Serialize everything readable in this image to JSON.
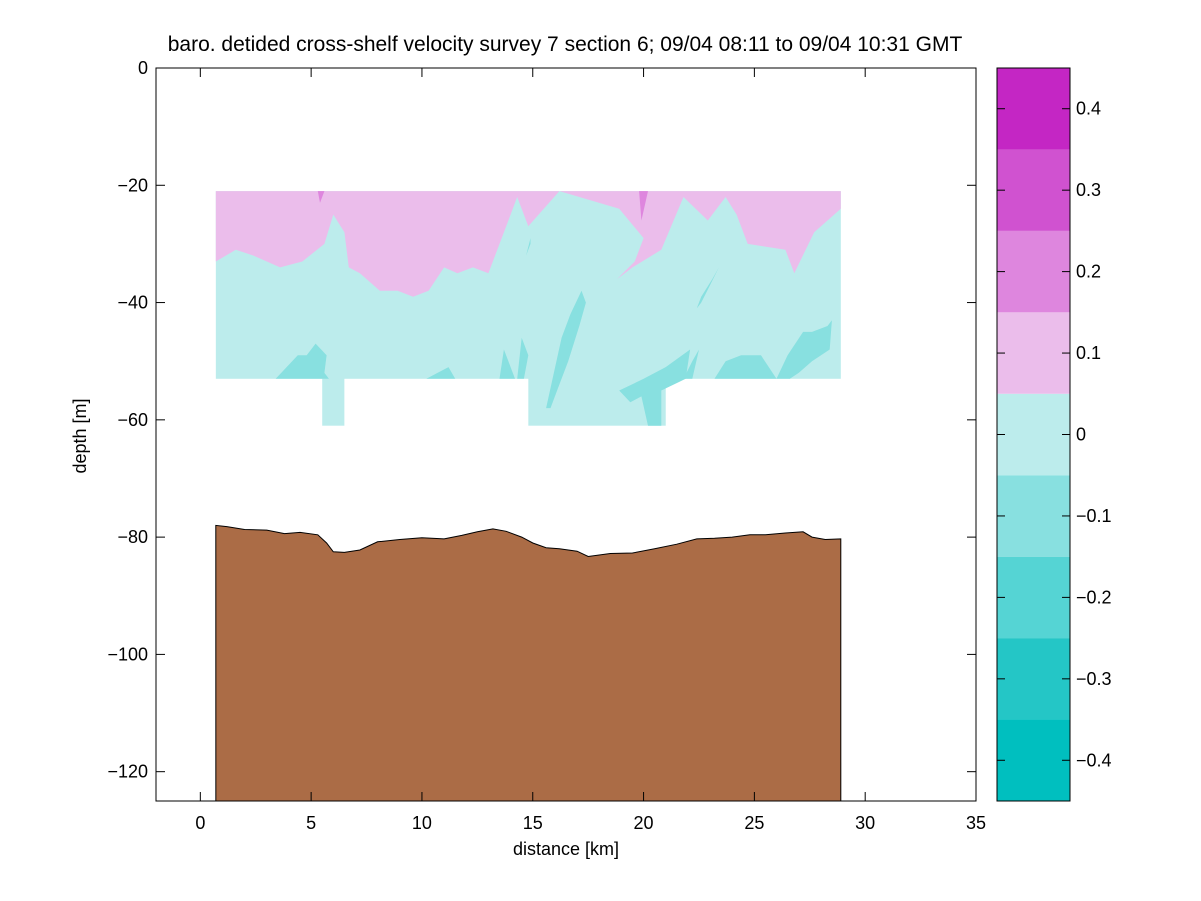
{
  "chart_data": {
    "type": "contour",
    "title": "baro. detided cross-shelf velocity survey 7 section 6; 09/04 08:11 to 09/04 10:31 GMT",
    "xlabel": "distance [km]",
    "ylabel": "depth [m]",
    "xlim": [
      -2,
      35
    ],
    "ylim": [
      -125,
      0
    ],
    "xticks": [
      0,
      5,
      10,
      15,
      20,
      25,
      30,
      35
    ],
    "yticks": [
      0,
      -20,
      -40,
      -60,
      -80,
      -100,
      -120
    ],
    "grid": false,
    "colorbar": {
      "range": [
        -0.45,
        0.45
      ],
      "levels": [
        -0.45,
        -0.35,
        -0.25,
        -0.15,
        -0.05,
        0.05,
        0.15,
        0.25,
        0.35,
        0.45
      ],
      "colors": [
        "#00bfbf",
        "#24c6c6",
        "#55d4d4",
        "#88e0e0",
        "#bcecec",
        "#ebbdeb",
        "#de86de",
        "#d052d0",
        "#c426c4"
      ],
      "ticks": [
        0.4,
        0.3,
        0.2,
        0.1,
        0,
        -0.1,
        -0.2,
        -0.3,
        -0.4
      ],
      "tick_labels": [
        "0.4",
        "0.3",
        "0.2",
        "0.1",
        "0",
        "−0.1",
        "−0.2",
        "−0.3",
        "−0.4"
      ]
    },
    "section": {
      "x_range": [
        0.7,
        28.9
      ],
      "depth_top": -21,
      "depth_bottom": -53,
      "deep_profiles": [
        [
          5.5,
          6.5
        ],
        [
          14.8,
          21.0
        ]
      ],
      "deep_bottom": -61,
      "base_level": 0.05
    },
    "regions": [
      {
        "level": 0.15,
        "points": [
          [
            0.7,
            -21
          ],
          [
            28.9,
            -21
          ],
          [
            28.9,
            -24
          ],
          [
            27.7,
            -28
          ],
          [
            26.8,
            -35
          ],
          [
            26.4,
            -31
          ],
          [
            24.7,
            -30
          ],
          [
            24.2,
            -25
          ],
          [
            23.7,
            -22
          ],
          [
            22.9,
            -26
          ],
          [
            21.8,
            -22
          ],
          [
            20.8,
            -31
          ],
          [
            19.5,
            -34
          ],
          [
            18.8,
            -36
          ],
          [
            19.6,
            -33
          ],
          [
            20.0,
            -29
          ],
          [
            18.9,
            -24
          ],
          [
            16.2,
            -21
          ],
          [
            14.8,
            -27
          ],
          [
            14.3,
            -22
          ],
          [
            13.8,
            -27
          ],
          [
            13.0,
            -35
          ],
          [
            12.3,
            -34
          ],
          [
            11.6,
            -35
          ],
          [
            11.0,
            -34
          ],
          [
            10.3,
            -38
          ],
          [
            9.6,
            -39
          ],
          [
            8.9,
            -38
          ],
          [
            8.1,
            -38
          ],
          [
            7.2,
            -35
          ],
          [
            6.7,
            -34
          ],
          [
            6.5,
            -28
          ],
          [
            6.0,
            -25
          ],
          [
            5.6,
            -30
          ],
          [
            4.6,
            -33
          ],
          [
            3.6,
            -34
          ],
          [
            2.4,
            -32
          ],
          [
            1.6,
            -31
          ],
          [
            0.7,
            -33
          ]
        ]
      },
      {
        "level": 0.25,
        "points": [
          [
            5.3,
            -21
          ],
          [
            5.6,
            -21
          ],
          [
            5.4,
            -23
          ]
        ]
      },
      {
        "level": 0.25,
        "points": [
          [
            19.8,
            -21
          ],
          [
            20.2,
            -21
          ],
          [
            19.9,
            -26
          ]
        ]
      },
      {
        "level": -0.05,
        "points": [
          [
            3.4,
            -53
          ],
          [
            4.4,
            -49
          ],
          [
            4.8,
            -49
          ],
          [
            5.2,
            -47
          ],
          [
            5.7,
            -49
          ],
          [
            5.6,
            -52
          ],
          [
            5.8,
            -53
          ]
        ]
      },
      {
        "level": -0.05,
        "points": [
          [
            10.2,
            -53
          ],
          [
            10.7,
            -52
          ],
          [
            11.2,
            -51
          ],
          [
            11.5,
            -53
          ]
        ]
      },
      {
        "level": -0.05,
        "points": [
          [
            13.5,
            -53
          ],
          [
            13.7,
            -48
          ],
          [
            13.9,
            -50
          ],
          [
            14.2,
            -53
          ]
        ]
      },
      {
        "level": -0.05,
        "points": [
          [
            14.3,
            -53
          ],
          [
            14.5,
            -46
          ],
          [
            14.8,
            -49
          ],
          [
            14.6,
            -53
          ]
        ]
      },
      {
        "level": -0.05,
        "points": [
          [
            15.6,
            -58
          ],
          [
            16.3,
            -46
          ],
          [
            16.7,
            -42
          ],
          [
            17.2,
            -38
          ],
          [
            17.4,
            -40
          ],
          [
            17.1,
            -44
          ],
          [
            16.6,
            -50
          ],
          [
            16.1,
            -55
          ],
          [
            15.8,
            -58
          ]
        ]
      },
      {
        "level": -0.05,
        "points": [
          [
            14.9,
            -30
          ],
          [
            14.9,
            -29
          ],
          [
            14.7,
            -32
          ]
        ]
      },
      {
        "level": -0.05,
        "points": [
          [
            20.2,
            -61
          ],
          [
            19.9,
            -56
          ],
          [
            19.4,
            -57
          ],
          [
            18.9,
            -55
          ],
          [
            20.0,
            -53
          ],
          [
            21.0,
            -51
          ],
          [
            22.1,
            -48
          ],
          [
            21.9,
            -53
          ],
          [
            20.8,
            -55
          ],
          [
            20.8,
            -61
          ]
        ]
      },
      {
        "level": -0.05,
        "points": [
          [
            21.8,
            -53
          ],
          [
            22.2,
            -50
          ],
          [
            22.5,
            -48
          ],
          [
            22.2,
            -53
          ]
        ]
      },
      {
        "level": -0.05,
        "points": [
          [
            22.4,
            -41
          ],
          [
            22.6,
            -39
          ],
          [
            23.1,
            -36
          ],
          [
            23.4,
            -34
          ],
          [
            23.0,
            -37
          ],
          [
            22.6,
            -40
          ]
        ]
      },
      {
        "level": -0.05,
        "points": [
          [
            23.2,
            -53
          ],
          [
            23.7,
            -50
          ],
          [
            24.4,
            -49
          ],
          [
            25.3,
            -49
          ],
          [
            26.0,
            -53
          ]
        ]
      },
      {
        "level": -0.05,
        "points": [
          [
            26.0,
            -53
          ],
          [
            26.5,
            -49
          ],
          [
            27.2,
            -45
          ],
          [
            27.6,
            -45
          ],
          [
            28.3,
            -44
          ],
          [
            28.5,
            -43
          ],
          [
            28.4,
            -48
          ],
          [
            27.6,
            -50
          ],
          [
            27.0,
            -52
          ],
          [
            26.6,
            -53
          ]
        ]
      }
    ],
    "bottom": {
      "x": [
        0.7,
        1.2,
        2.0,
        3.0,
        3.8,
        4.5,
        5.3,
        5.7,
        6.0,
        6.5,
        7.2,
        8.0,
        9.0,
        10.0,
        11.0,
        11.8,
        12.5,
        13.2,
        13.8,
        14.5,
        15.0,
        15.6,
        16.2,
        17.0,
        17.5,
        18.5,
        19.5,
        20.5,
        21.5,
        22.4,
        23.2,
        24.0,
        24.8,
        25.5,
        26.4,
        27.2,
        27.6,
        28.2,
        28.9
      ],
      "depth": [
        -78.0,
        -78.2,
        -78.7,
        -78.8,
        -79.4,
        -79.2,
        -79.6,
        -81.0,
        -82.5,
        -82.6,
        -82.2,
        -80.8,
        -80.4,
        -80.1,
        -80.3,
        -79.7,
        -79.1,
        -78.6,
        -79.0,
        -80.0,
        -81.0,
        -81.8,
        -82.0,
        -82.4,
        -83.3,
        -82.8,
        -82.7,
        -82.0,
        -81.2,
        -80.3,
        -80.2,
        -80.0,
        -79.6,
        -79.6,
        -79.3,
        -79.1,
        -80.0,
        -80.4,
        -80.3
      ],
      "color": "#ab6c46"
    }
  }
}
